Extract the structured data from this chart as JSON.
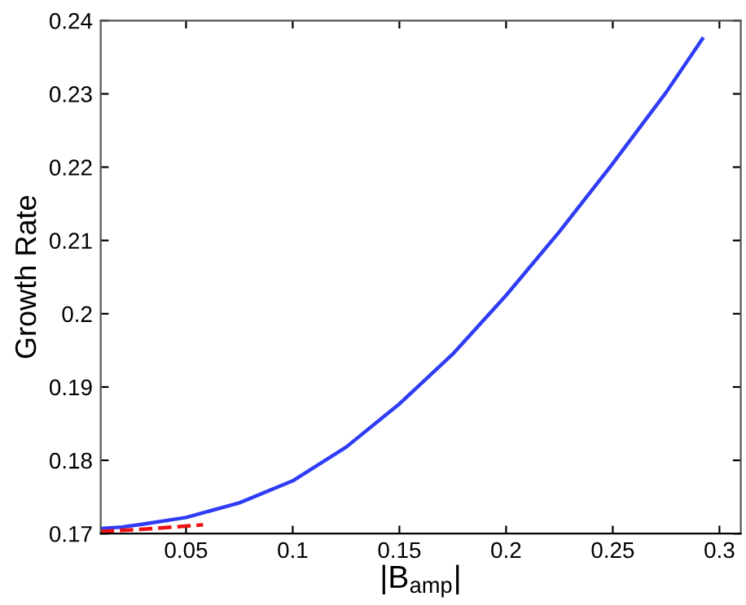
{
  "chart_data": {
    "type": "line",
    "xlabel": "|B$_{amp}$|",
    "ylabel": "Growth Rate",
    "xlim": [
      0.01,
      0.31
    ],
    "ylim": [
      0.17,
      0.24
    ],
    "xticks": [
      0.05,
      0.1,
      0.15,
      0.2,
      0.25,
      0.3
    ],
    "yticks": [
      0.17,
      0.18,
      0.19,
      0.2,
      0.21,
      0.22,
      0.23,
      0.24
    ],
    "grid": false,
    "series": [
      {
        "color": "#2e3cf5",
        "line_style": "solid",
        "x": [
          0.01,
          0.02,
          0.03,
          0.05,
          0.075,
          0.1,
          0.125,
          0.15,
          0.175,
          0.2,
          0.225,
          0.25,
          0.275,
          0.292
        ],
        "values": [
          0.1707,
          0.1709,
          0.1713,
          0.1722,
          0.1742,
          0.1772,
          0.1818,
          0.1877,
          0.1945,
          0.2025,
          0.2112,
          0.2205,
          0.2302,
          0.2375
        ]
      },
      {
        "color": "#ee1111",
        "line_style": "dashed",
        "x": [
          0.01,
          0.03,
          0.058
        ],
        "values": [
          0.1703,
          0.1706,
          0.1712
        ]
      }
    ]
  }
}
